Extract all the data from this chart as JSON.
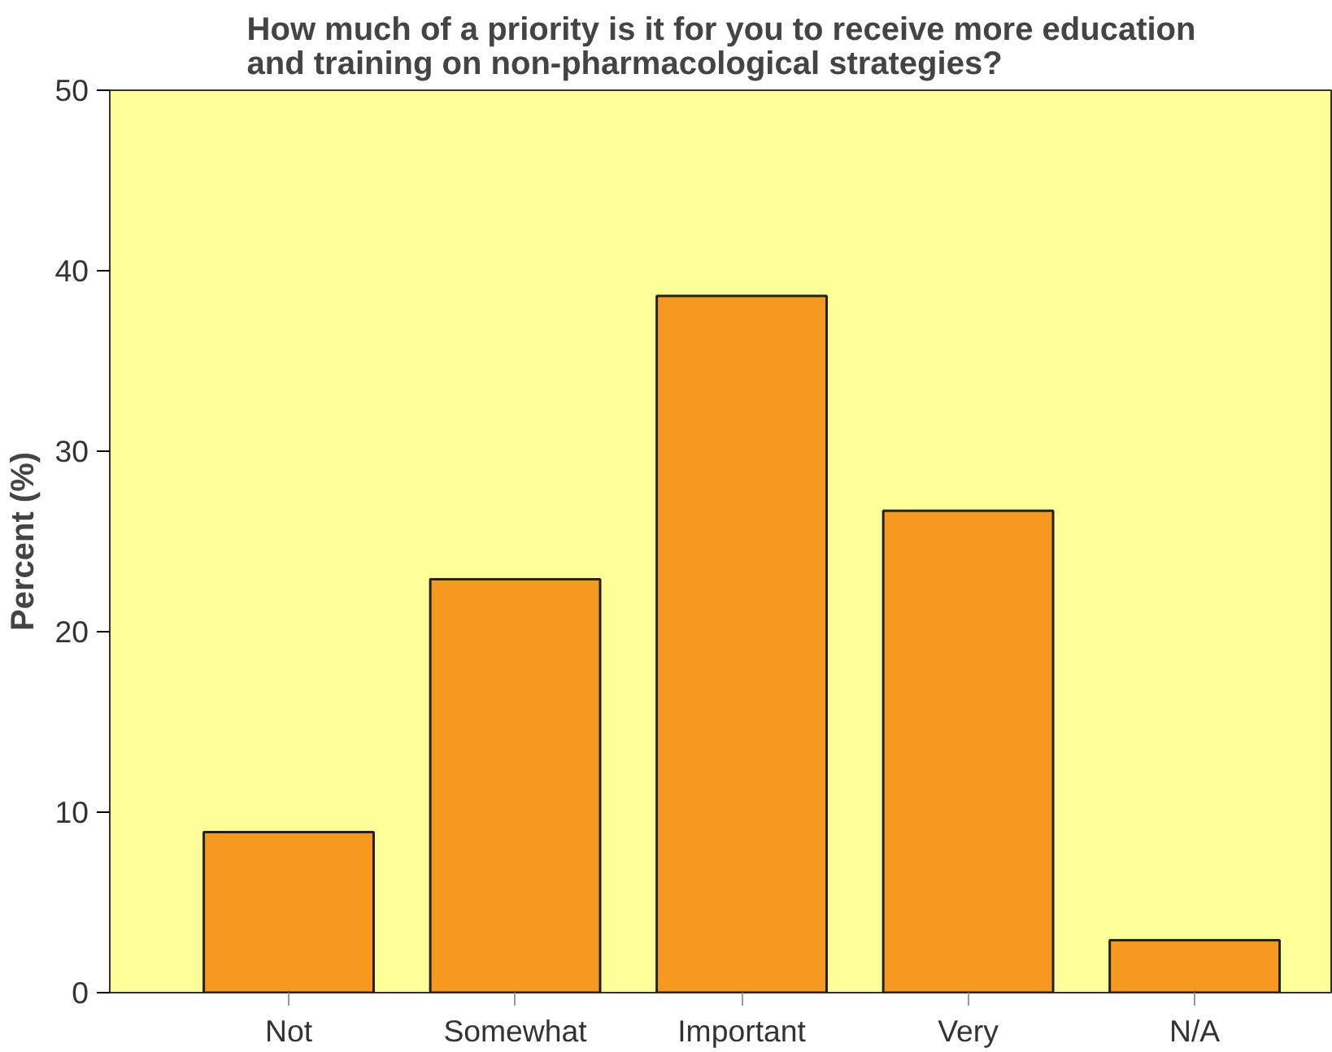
{
  "chart_data": {
    "type": "bar",
    "title": "How much of a priority is it for you to receive more education\nand training on non-pharmacological strategies?",
    "ylabel": "Percent (%)",
    "categories": [
      "Not",
      "Somewhat",
      "Important",
      "Very",
      "N/A"
    ],
    "values": [
      8.9,
      22.9,
      38.6,
      26.7,
      2.9
    ],
    "color": "#f7991e",
    "ylim": [
      0,
      50
    ],
    "yticks": [
      0,
      10,
      20,
      30,
      40,
      50
    ],
    "grid": false
  }
}
